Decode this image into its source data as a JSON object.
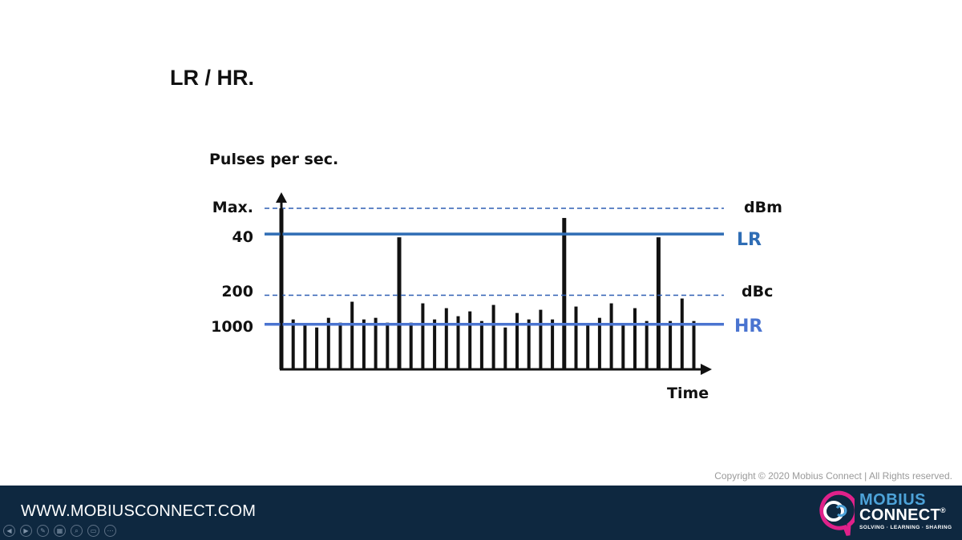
{
  "slide": {
    "title": "LR / HR."
  },
  "chart_data": {
    "type": "bar",
    "title": "",
    "ylabel": "Pulses per sec.",
    "xlabel": "Time",
    "y_tick_labels": [
      "Max.",
      "40",
      "200",
      "1000"
    ],
    "levels": {
      "max": 1.0,
      "lr": 0.84,
      "dbc": 0.46,
      "hr": 0.28
    },
    "reference_lines": [
      {
        "label": "dBm",
        "level": "max",
        "style": "dashed",
        "color": "#2f5fb3"
      },
      {
        "label": "LR",
        "level": "lr",
        "style": "solid",
        "color": "#2f6db5"
      },
      {
        "label": "dBc",
        "level": "dbc",
        "style": "dashed",
        "color": "#2f5fb3"
      },
      {
        "label": "HR",
        "level": "hr",
        "style": "solid",
        "color": "#4a74d0"
      }
    ],
    "pulses": [
      1.0,
      0.31,
      0.28,
      0.26,
      0.32,
      0.29,
      0.42,
      0.31,
      0.32,
      0.29,
      0.82,
      0.29,
      0.41,
      0.31,
      0.38,
      0.33,
      0.36,
      0.3,
      0.4,
      0.26,
      0.35,
      0.31,
      0.37,
      0.31,
      0.94,
      0.39,
      0.28,
      0.32,
      0.41,
      0.28,
      0.38,
      0.3,
      0.82,
      0.3,
      0.44,
      0.3
    ],
    "grid": false,
    "legend": "none"
  },
  "footer": {
    "copyright": "Copyright © 2020 Mobius Connect | All Rights reserved.",
    "url": "WWW.MOBIUSCONNECT.COM",
    "logo": {
      "word1": "MOBIUS",
      "word2": "CONNECT",
      "registered": "®",
      "tagline": "SOLVING · LEARNING · SHARING"
    },
    "nav_controls": [
      {
        "icon": "previous-icon",
        "glyph": "◀"
      },
      {
        "icon": "next-icon",
        "glyph": "▶"
      },
      {
        "icon": "pen-icon",
        "glyph": "✎"
      },
      {
        "icon": "slides-icon",
        "glyph": "▦"
      },
      {
        "icon": "zoom-icon",
        "glyph": "⌕"
      },
      {
        "icon": "subtitles-icon",
        "glyph": "▭"
      },
      {
        "icon": "more-icon",
        "glyph": "⋯"
      }
    ]
  },
  "colors": {
    "footer_bg": "#0e2840",
    "lr": "#2f6db5",
    "hr": "#4a74d0",
    "dashed": "#2f5fb3",
    "logo_pink": "#e0218a",
    "logo_blue": "#4da3d9"
  }
}
